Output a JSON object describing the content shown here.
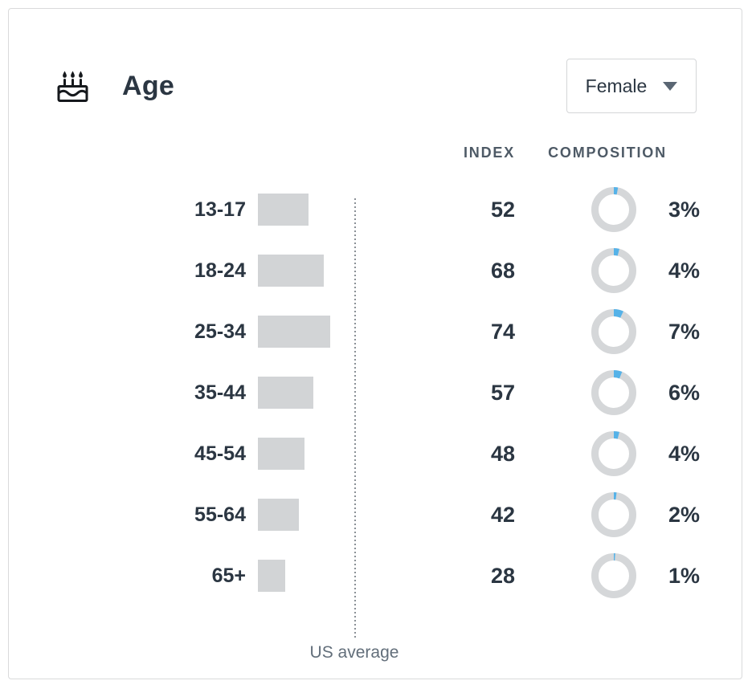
{
  "card": {
    "header": {
      "icon": "birthday-cake-icon",
      "title": "Age",
      "dropdown": {
        "value": "Female",
        "icon": "chevron-down-icon"
      }
    },
    "columns": {
      "index": "INDEX",
      "composition": "COMPOSITION"
    },
    "footer_label": "US average"
  },
  "chart_data": {
    "type": "bar",
    "title": "Age",
    "selected_segment": "Female",
    "orientation": "horizontal",
    "categories": [
      "13-17",
      "18-24",
      "25-34",
      "35-44",
      "45-54",
      "55-64",
      "65+"
    ],
    "series": [
      {
        "name": "INDEX",
        "values": [
          52,
          68,
          74,
          57,
          48,
          42,
          28
        ]
      },
      {
        "name": "COMPOSITION",
        "unit": "%",
        "values": [
          3,
          4,
          7,
          6,
          4,
          2,
          1
        ]
      }
    ],
    "reference_line": {
      "label": "US average",
      "value": 100
    },
    "xlim": [
      0,
      130
    ],
    "grid": false,
    "legend": false
  },
  "colors": {
    "text_dark": "#2b3642",
    "column_header": "#4e5a66",
    "bar_fill": "#d2d4d6",
    "donut_track": "#d5d7d9",
    "accent_blue": "#55b2e8",
    "reference_line": "#8a9096",
    "muted_text": "#626e7a",
    "card_border": "#d9dadb",
    "dropdown_border": "#d4d6d8"
  }
}
